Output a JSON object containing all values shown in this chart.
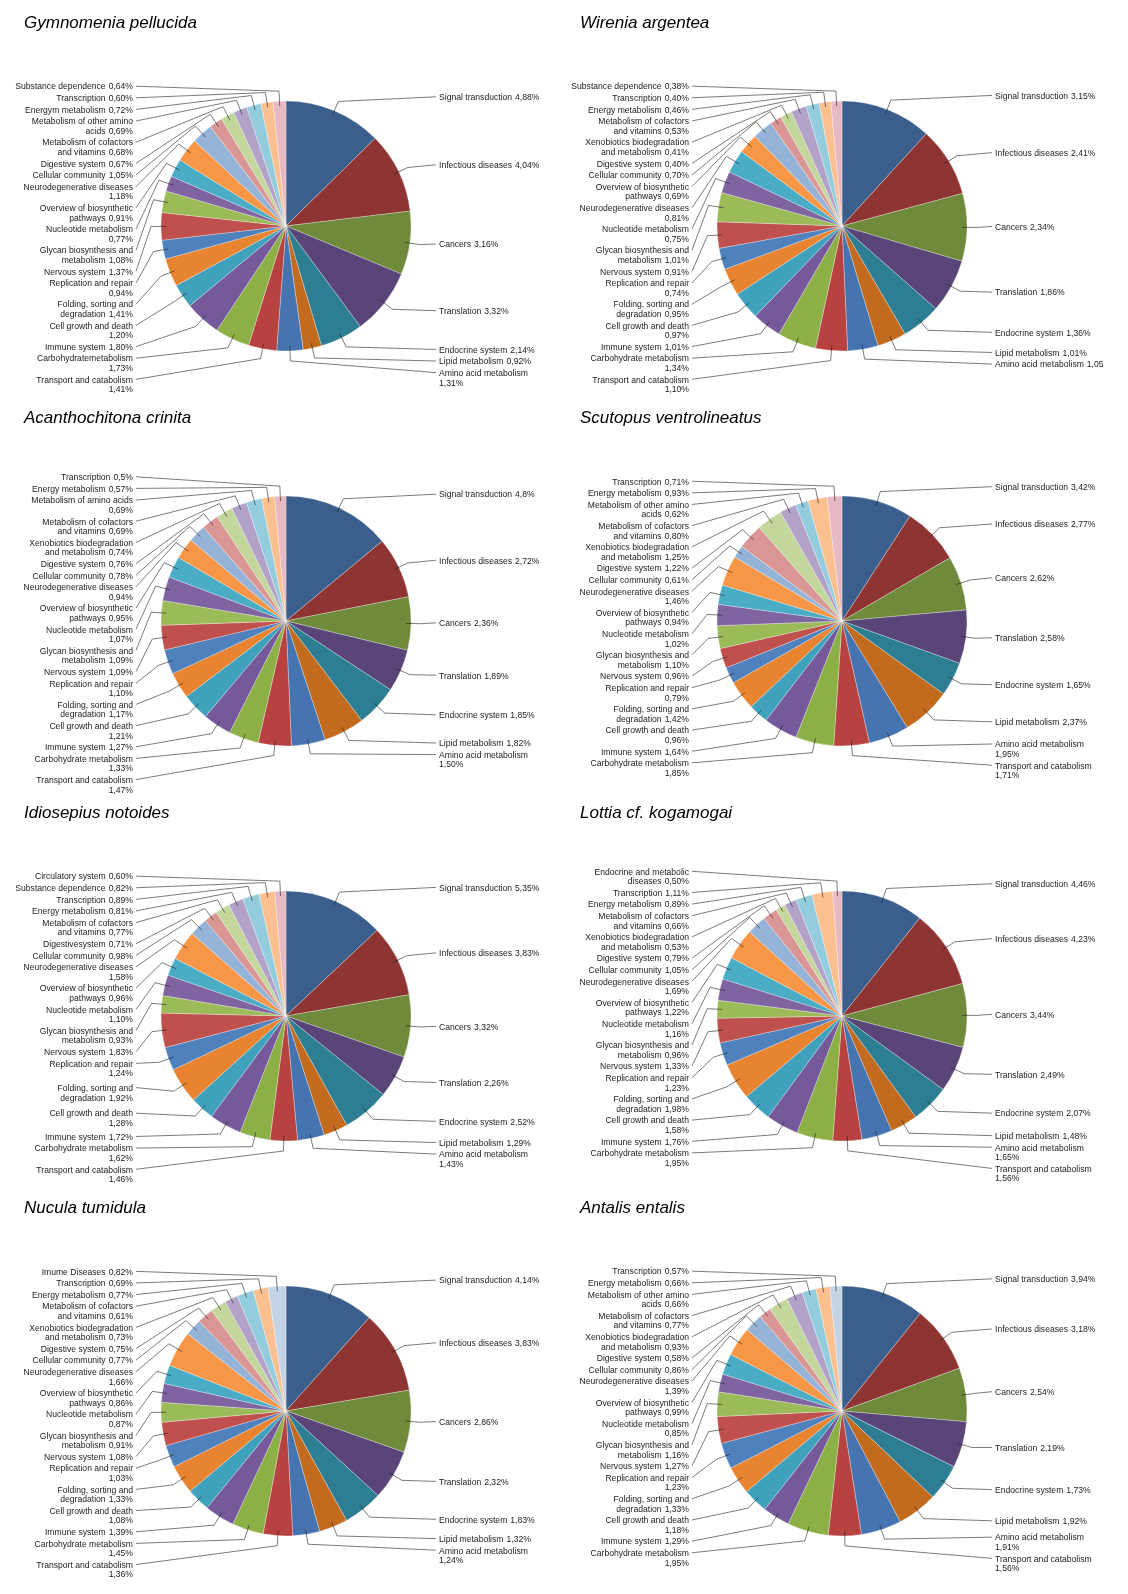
{
  "chart_data": [
    {
      "type": "pie",
      "title": "Gymnomenia pellucida",
      "categories": [
        "Signal transduction",
        "Infectious diseases",
        "Cancers",
        "Translation",
        "Endocrine system",
        "Lipid metabolism",
        "Amino acid metabolism",
        "Transport and catabolism",
        "Carbohydratemetabolism",
        "Immune system",
        "Cell growth and death",
        "Folding, sorting and degradation",
        "Replication and repair",
        "Nervous system",
        "Glycan biosynthesis and metabolism",
        "Nucleotide metabolism",
        "Overview of biosynthetic pathways",
        "Neurodegenerative diseases",
        "Cellular community",
        "Digestive system",
        "Metabolism of cofactors and vitamins",
        "Metabolism of other amino acids",
        "Energym metabolism",
        "Transcription",
        "Substance dependence"
      ],
      "values": [
        4.88,
        4.04,
        3.16,
        3.32,
        2.14,
        0.92,
        1.31,
        1.41,
        1.73,
        1.8,
        1.2,
        1.41,
        0.94,
        1.37,
        1.08,
        0.77,
        0.91,
        1.18,
        1.05,
        0.67,
        0.68,
        0.69,
        0.72,
        0.6,
        0.64
      ],
      "value_labels": [
        "4,88%",
        "4,04%",
        "3,16%",
        "3,32%",
        "2,14%",
        "0,92%",
        "1,31%",
        "1,41%",
        "1,73%",
        "1,80%",
        "1,20%",
        "1,41%",
        "0,94%",
        "1,37%",
        "1,08%",
        "0,77%",
        "0,91%",
        "1,18%",
        "1,05%",
        "0,67%",
        "0,68%",
        "0,69%",
        "0,72%",
        "0,60%",
        "0,64%"
      ],
      "colors": [
        "#3b5f8c",
        "#8e3533",
        "#6f8a3a",
        "#5a4578",
        "#2e7e93",
        "#c26a1e",
        "#4674b0",
        "#b8423f",
        "#8db046",
        "#75599a",
        "#3fa1bc",
        "#e8832f",
        "#4f81bd",
        "#c0504d",
        "#9bbb59",
        "#8064a2",
        "#4bacc6",
        "#f79646",
        "#95b3d7",
        "#d99694",
        "#c3d69b",
        "#b3a2c7",
        "#93cddd",
        "#fac090",
        "#e6b9c4"
      ]
    },
    {
      "type": "pie",
      "title": "Wirenia argentea",
      "categories": [
        "Signal transduction",
        "Infectious diseases",
        "Cancers",
        "Translation",
        "Endocrine system",
        "Lipid metabolism",
        "Amino acid metabolism",
        "Transport and catabolism",
        "Carbohydrate metabolism",
        "Immune system",
        "Cell growth and death",
        "Folding, sorting and degradation",
        "Replication and repair",
        "Nervous system",
        "Glycan biosynthesis and metabolism",
        "Nucleotide metabolism",
        "Neurodegenerative diseases",
        "Overview of biosynthetic pathways",
        "Cellular community",
        "Digestive system",
        "Xenobiotics biodegradation and metabolism",
        "Metabolism of cofactors and vitamins",
        "Energy metabolism",
        "Transcription",
        "Substance dependence"
      ],
      "values": [
        3.15,
        2.41,
        2.34,
        1.86,
        1.36,
        1.01,
        1.05,
        1.1,
        1.34,
        1.01,
        0.97,
        0.95,
        0.74,
        0.91,
        1.01,
        0.75,
        0.81,
        0.69,
        0.7,
        0.4,
        0.41,
        0.53,
        0.46,
        0.4,
        0.38
      ],
      "value_labels": [
        "3,15%",
        "2,41%",
        "2,34%",
        "1,86%",
        "1,36%",
        "1,01%",
        "1,05",
        "1,10%",
        "1,34%",
        "1,01%",
        "0,97%",
        "0,95%",
        "0,74%",
        "0,91%",
        "1,01%",
        "0,75%",
        "0,81%",
        "0,69%",
        "0,70%",
        "0,40%",
        "0,41%",
        "0,53%",
        "0,46%",
        "0,40%",
        "0,38%"
      ],
      "colors": [
        "#3b5f8c",
        "#8e3533",
        "#6f8a3a",
        "#5a4578",
        "#2e7e93",
        "#c26a1e",
        "#4674b0",
        "#b8423f",
        "#8db046",
        "#75599a",
        "#3fa1bc",
        "#e8832f",
        "#4f81bd",
        "#c0504d",
        "#9bbb59",
        "#8064a2",
        "#4bacc6",
        "#f79646",
        "#95b3d7",
        "#d99694",
        "#c3d69b",
        "#b3a2c7",
        "#93cddd",
        "#fac090",
        "#e6b9c4"
      ]
    },
    {
      "type": "pie",
      "title": "Acanthochitona crinita",
      "categories": [
        "Signal transduction",
        "Infectious diseases",
        "Cancers",
        "Translation",
        "Endocrine system",
        "Lipid metabolism",
        "Amino acid metabolism",
        "Transport and catabolism",
        "Carbohydrate metabolism",
        "Immune system",
        "Cell growth and death",
        "Folding, sorting and degradation",
        "Replication and repair",
        "Nervous system",
        "Glycan biosynthesis and metabolism",
        "Nucleotide metabolism",
        "Overview of biosynthetic pathways",
        "Neurodegenerative diseases",
        "Cellular community",
        "Digestive system",
        "Xenobiotics biodegradation and metabolism",
        "Metabolism of cofactors and vitamins",
        "Metabolism of amino acids",
        "Energy metabolism",
        "Transcription"
      ],
      "values": [
        4.8,
        2.72,
        2.36,
        1.89,
        1.85,
        1.82,
        1.5,
        1.47,
        1.33,
        1.27,
        1.21,
        1.17,
        1.1,
        1.09,
        1.09,
        1.07,
        0.95,
        0.94,
        0.78,
        0.76,
        0.74,
        0.69,
        0.69,
        0.57,
        0.5
      ],
      "value_labels": [
        "4,8%",
        "2,72%",
        "2,36%",
        "1,89%",
        "1,85%",
        "1,82%",
        "1,50%",
        "1,47%",
        "1,33%",
        "1,27%",
        "1,21%",
        "1,17%",
        "1,10%",
        "1,09%",
        "1,09%",
        "1,07%",
        "0,95%",
        "0,94%",
        "0,78%",
        "0,76%",
        "0,74%",
        "0,69%",
        "0,69%",
        "0,57%",
        "0,5%"
      ],
      "colors": [
        "#3b5f8c",
        "#8e3533",
        "#6f8a3a",
        "#5a4578",
        "#2e7e93",
        "#c26a1e",
        "#4674b0",
        "#b8423f",
        "#8db046",
        "#75599a",
        "#3fa1bc",
        "#e8832f",
        "#4f81bd",
        "#c0504d",
        "#9bbb59",
        "#8064a2",
        "#4bacc6",
        "#f79646",
        "#95b3d7",
        "#d99694",
        "#c3d69b",
        "#b3a2c7",
        "#93cddd",
        "#fac090",
        "#e6b9c4"
      ]
    },
    {
      "type": "pie",
      "title": "Scutopus ventrolineatus",
      "categories": [
        "Signal transduction",
        "Infectious diseases",
        "Cancers",
        "Translation",
        "Endocrine system",
        "Lipid metabolism",
        "Amino acid metabolism",
        "Transport and catabolism",
        "Carbohydrate metabolism",
        "Immune system",
        "Cell growth and death",
        "Folding, sorting and degradation",
        "Replication and repair",
        "Nervous system",
        "Glycan biosynthesis and metabolism",
        "Nucleotide metabolism",
        "Overview of biosynthetic pathways",
        "Neurodegenerative diseases",
        "Cellular community",
        "Digestive system",
        "Xenobiotics biodegradation and metabolism",
        "Metabolism of cofactors and vitamins",
        "Metabolism of other amino acids",
        "Energy metabolism",
        "Transcription"
      ],
      "values": [
        3.42,
        2.77,
        2.62,
        2.58,
        1.65,
        2.37,
        1.95,
        1.71,
        1.85,
        1.64,
        0.96,
        1.42,
        0.79,
        0.96,
        1.1,
        1.02,
        0.94,
        1.46,
        0.61,
        1.22,
        1.25,
        0.8,
        0.62,
        0.93,
        0.71
      ],
      "value_labels": [
        "3,42%",
        "2,77%",
        "2,62%",
        "2,58%",
        "1,65%",
        "2,37%",
        "1,95%",
        "1,71%",
        "1,85%",
        "1,64%",
        "0,96%",
        "1,42%",
        "0,79%",
        "0,96%",
        "1,10%",
        "1,02%",
        "0,94%",
        "1,46%",
        "0,61%",
        "1,22%",
        "1,25%",
        "0,80%",
        "0,62%",
        "0,93%",
        "0,71%"
      ],
      "colors": [
        "#3b5f8c",
        "#8e3533",
        "#6f8a3a",
        "#5a4578",
        "#2e7e93",
        "#c26a1e",
        "#4674b0",
        "#b8423f",
        "#8db046",
        "#75599a",
        "#3fa1bc",
        "#e8832f",
        "#4f81bd",
        "#c0504d",
        "#9bbb59",
        "#8064a2",
        "#4bacc6",
        "#f79646",
        "#95b3d7",
        "#d99694",
        "#c3d69b",
        "#b3a2c7",
        "#93cddd",
        "#fac090",
        "#e6b9c4"
      ]
    },
    {
      "type": "pie",
      "title": "Idiosepius notoides",
      "categories": [
        "Signal transduction",
        "Infectious diseases",
        "Cancers",
        "Translation",
        "Endocrine system",
        "Lipid metabolism",
        "Amino acid metabolism",
        "Transport and catabolism",
        "Carbohydrate metabolism",
        "Immune system",
        "Cell growth and death",
        "Folding, sorting and degradation",
        "Replication and repair",
        "Nervous system",
        "Glycan biosynthesis and metabolism",
        "Nucleotide metabolism",
        "Overview of biosynthetic pathways",
        "Neurodegenerative diseases",
        "Cellular community",
        "Digestivesystem",
        "Metabolism of cofactors and vitamins",
        "Energy metabolism",
        "Transcription",
        "Substance dependence",
        "Circulatory system"
      ],
      "values": [
        5.35,
        3.83,
        3.32,
        2.26,
        2.52,
        1.29,
        1.43,
        1.46,
        1.62,
        1.72,
        1.28,
        1.92,
        1.24,
        1.83,
        0.93,
        1.1,
        0.96,
        1.58,
        0.98,
        0.71,
        0.77,
        0.81,
        0.89,
        0.82,
        0.6
      ],
      "value_labels": [
        "5,35%",
        "3,83%",
        "3,32%",
        "2,26%",
        "2,52%",
        "1,29%",
        "1,43%",
        "1,46%",
        "1,62%",
        "1,72%",
        "1,28%",
        "1,92%",
        "1,24%",
        "1,83%",
        "0,93%",
        "1,10%",
        "0,96%",
        "1,58%",
        "0,98%",
        "0,71%",
        "0,77%",
        "0,81%",
        "0,89%",
        "0,82%",
        "0,60%"
      ],
      "colors": [
        "#3b5f8c",
        "#8e3533",
        "#6f8a3a",
        "#5a4578",
        "#2e7e93",
        "#c26a1e",
        "#4674b0",
        "#b8423f",
        "#8db046",
        "#75599a",
        "#3fa1bc",
        "#e8832f",
        "#4f81bd",
        "#c0504d",
        "#9bbb59",
        "#8064a2",
        "#4bacc6",
        "#f79646",
        "#95b3d7",
        "#d99694",
        "#c3d69b",
        "#b3a2c7",
        "#93cddd",
        "#fac090",
        "#e6b9c4"
      ]
    },
    {
      "type": "pie",
      "title": "Lottia cf. kogamogai",
      "categories": [
        "Signal transduction",
        "Infectious diseases",
        "Cancers",
        "Translation",
        "Endocrine system",
        "Lipid metabolism",
        "Amino acid metabolism",
        "Transport and catabolism",
        "Carbohydrate metabolism",
        "Immune system",
        "Cell growth and death",
        "Folding, sorting and degradation",
        "Replication and repair",
        "Nervous system",
        "Glycan biosynthesis and metabolism",
        "Nucleotide metabolism",
        "Overview of biosynthetic pathways",
        "Neurodegenerative diseases",
        "Cellular community",
        "Digestive system",
        "Xenobiotics biodegradation and metabolism",
        "Metabolism of cofactors and vitamins",
        "Energy metabolism",
        "Transcription",
        "Endocrine and metabolic diseases"
      ],
      "values": [
        4.46,
        4.23,
        3.44,
        2.49,
        2.07,
        1.48,
        1.65,
        1.56,
        1.95,
        1.76,
        1.58,
        1.98,
        1.23,
        1.33,
        0.96,
        1.16,
        1.22,
        1.69,
        1.05,
        0.79,
        0.53,
        0.66,
        0.89,
        1.11,
        0.5
      ],
      "value_labels": [
        "4,46%",
        "4,23%",
        "3,44%",
        "2,49%",
        "2,07%",
        "1,48%",
        "1,65%",
        "1,56%",
        "1,95%",
        "1,76%",
        "1,58%",
        "1,98%",
        "1,23%",
        "1,33%",
        "0,96%",
        "1,16%",
        "1,22%",
        "1,69%",
        "1,05%",
        "0,79%",
        "0,53%",
        "0,66%",
        "0,89%",
        "1,11%",
        "0,50%"
      ],
      "colors": [
        "#3b5f8c",
        "#8e3533",
        "#6f8a3a",
        "#5a4578",
        "#2e7e93",
        "#c26a1e",
        "#4674b0",
        "#b8423f",
        "#8db046",
        "#75599a",
        "#3fa1bc",
        "#e8832f",
        "#4f81bd",
        "#c0504d",
        "#9bbb59",
        "#8064a2",
        "#4bacc6",
        "#f79646",
        "#95b3d7",
        "#d99694",
        "#c3d69b",
        "#b3a2c7",
        "#93cddd",
        "#fac090",
        "#e6b9c4"
      ]
    },
    {
      "type": "pie",
      "title": "Nucula tumidula",
      "categories": [
        "Signal transduction",
        "Infectious diseases",
        "Cancers",
        "Translation",
        "Endocrine system",
        "Lipid metabolism",
        "Amino acid metabolism",
        "Transport and catabolism",
        "Carbohydrate metabolism",
        "Immune system",
        "Cell growth and death",
        "Folding, sorting and degradation",
        "Replication and repair",
        "Nervous system",
        "Glycan biosynthesis and metabolism",
        "Nucleotide metabolism",
        "Overview of biosynthetic pathways",
        "Neurodegenerative diseases",
        "Cellular community",
        "Digestive system",
        "Xenobiotics biodegradation and metabolism",
        "Metabolism of cofactors and vitamins",
        "Energy metabolism",
        "Transcription",
        "Imume Diseases"
      ],
      "values": [
        4.14,
        3.83,
        2.86,
        2.32,
        1.83,
        1.32,
        1.24,
        1.36,
        1.45,
        1.39,
        1.08,
        1.33,
        1.03,
        1.08,
        0.91,
        0.87,
        0.86,
        1.66,
        0.77,
        0.75,
        0.73,
        0.61,
        0.77,
        0.69,
        0.82
      ],
      "value_labels": [
        "4,14%",
        "3,83%",
        "2,86%",
        "2,32%",
        "1,83%",
        "1,32%",
        "1,24%",
        "1,36%",
        "1,45%",
        "1,39%",
        "1,08%",
        "1,33%",
        "1,03%",
        "1,08%",
        "0,91%",
        "0,87%",
        "0,86%",
        "1,66%",
        "0,77%",
        "0,75%",
        "0,73%",
        "0,61%",
        "0,77%",
        "0,69%",
        "0,82%"
      ],
      "colors": [
        "#3b5f8c",
        "#8e3533",
        "#6f8a3a",
        "#5a4578",
        "#2e7e93",
        "#c26a1e",
        "#4674b0",
        "#b8423f",
        "#8db046",
        "#75599a",
        "#3fa1bc",
        "#e8832f",
        "#4f81bd",
        "#c0504d",
        "#9bbb59",
        "#8064a2",
        "#4bacc6",
        "#f79646",
        "#95b3d7",
        "#d99694",
        "#c3d69b",
        "#b3a2c7",
        "#93cddd",
        "#fac090",
        "#c5d3e6"
      ]
    },
    {
      "type": "pie",
      "title": "Antalis entalis",
      "categories": [
        "Signal transduction",
        "Infectious diseases",
        "Cancers",
        "Translation",
        "Endocrine system",
        "Lipid metabolism",
        "Amino acid metabolism",
        "Transport and catabolism",
        "Carbohydrate metabolism",
        "Immune system",
        "Cell growth and death",
        "Folding, sorting and degradation",
        "Replication and repair",
        "Nervous system",
        "Glycan biosynthesis and metabolism",
        "Nucleotide metabolism",
        "Overview of biosynthetic pathways",
        "Neurodegenerative diseases",
        "Cellular community",
        "Digestive system",
        "Xenobiotics biodegradation and metabolism",
        "Metabolism of cofactors and vitamins",
        "Metabolism of other amino acids",
        "Energy metabolism",
        "Transcription"
      ],
      "values": [
        3.94,
        3.18,
        2.54,
        2.19,
        1.73,
        1.92,
        1.91,
        1.56,
        1.95,
        1.29,
        1.18,
        1.33,
        1.23,
        1.27,
        1.16,
        0.85,
        0.99,
        1.39,
        0.86,
        0.58,
        0.93,
        0.77,
        0.66,
        0.66,
        0.57
      ],
      "value_labels": [
        "3,94%",
        "3,18%",
        "2,54%",
        "2,19%",
        "1,73%",
        "1,92%",
        "1,91%",
        "1,56%",
        "1,95%",
        "1,29%",
        "1,18%",
        "1,33%",
        "1,23%",
        "1,27%",
        "1,16%",
        "0,85%",
        "0,99%",
        "1,39%",
        "0,86%",
        "0,58%",
        "0,93%",
        "0,77%",
        "0,66%",
        "0,66%",
        "0,57%"
      ],
      "colors": [
        "#3b5f8c",
        "#8e3533",
        "#6f8a3a",
        "#5a4578",
        "#2e7e93",
        "#c26a1e",
        "#4674b0",
        "#b8423f",
        "#8db046",
        "#75599a",
        "#3fa1bc",
        "#e8832f",
        "#4f81bd",
        "#c0504d",
        "#9bbb59",
        "#8064a2",
        "#4bacc6",
        "#f79646",
        "#95b3d7",
        "#d99694",
        "#c3d69b",
        "#b3a2c7",
        "#93cddd",
        "#fac090",
        "#c5d3e6"
      ]
    }
  ]
}
